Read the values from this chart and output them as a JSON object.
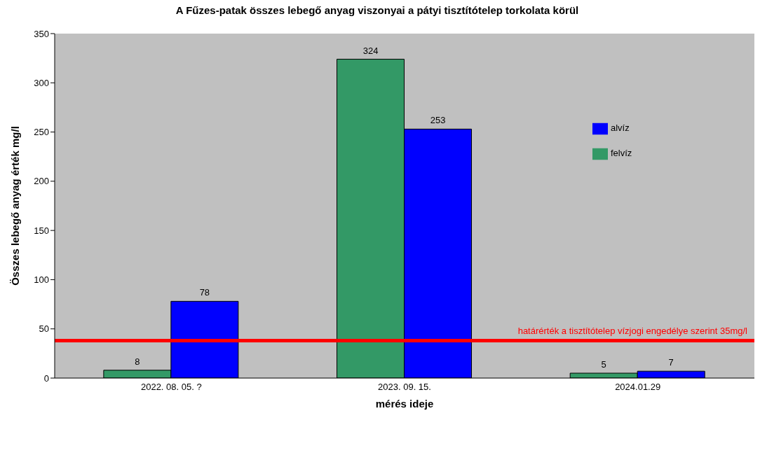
{
  "chart_data": {
    "type": "bar",
    "title": "A Fűzes-patak összes lebegő anyag viszonyai a pátyi tisztítótelep torkolata  körül",
    "xlabel": "mérés ideje",
    "ylabel": "Összes lebegő anyag érték mg/l",
    "categories": [
      "2022. 08. 05. ?",
      "2023. 09. 15.",
      "2024.01.29"
    ],
    "series": [
      {
        "name": "felvíz",
        "color": "#339966",
        "values": [
          8,
          324,
          5
        ]
      },
      {
        "name": "alvíz",
        "color": "#0000ff",
        "values": [
          78,
          253,
          7
        ]
      }
    ],
    "ylim": [
      0,
      350
    ],
    "yticks": [
      0,
      50,
      100,
      150,
      200,
      250,
      300,
      350
    ],
    "grid": false,
    "legend": "top right",
    "data_labels": true,
    "ref_lines": [
      {
        "axis": "y",
        "value": 38,
        "label": "határérték a tisztítótelep vízjogi engedélye szerint 35mg/l",
        "color": "#ff0000"
      }
    ]
  }
}
